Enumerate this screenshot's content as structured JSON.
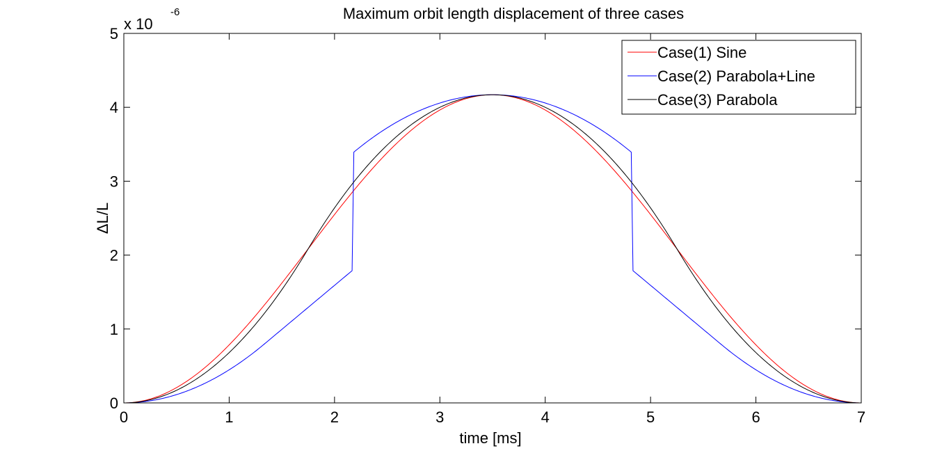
{
  "chart_data": {
    "type": "line",
    "title": "Maximum orbit length displacement of three cases",
    "xlabel": "time [ms]",
    "ylabel": "ΔL/L",
    "xlim": [
      0,
      7
    ],
    "ylim": [
      0,
      5e-06
    ],
    "x_ticks": [
      "0",
      "1",
      "2",
      "3",
      "4",
      "5",
      "6",
      "7"
    ],
    "y_ticks": [
      "0",
      "1",
      "2",
      "3",
      "4",
      "5"
    ],
    "y_exponent_base": "x 10",
    "y_exponent_power": "-6",
    "grid": false,
    "legend_position": "top-right",
    "peak": {
      "x": 3.5,
      "y": 4.17e-06
    },
    "series": [
      {
        "name": "Case(1) Sine",
        "color": "#ff0000",
        "shape": "sine"
      },
      {
        "name": "Case(2) Parabola+Line",
        "color": "#0000ff",
        "shape": "parabola-line"
      },
      {
        "name": "Case(3) Parabola",
        "color": "#000000",
        "shape": "parabola"
      }
    ],
    "crossing_points": [
      {
        "x": 1.75,
        "y": 2.085e-06
      },
      {
        "x": 5.25,
        "y": 2.085e-06
      }
    ]
  }
}
